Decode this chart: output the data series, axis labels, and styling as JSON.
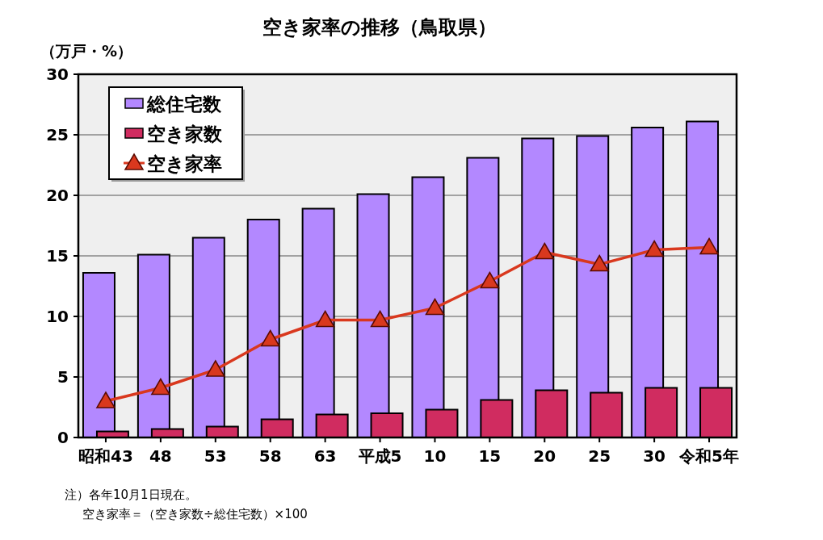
{
  "chart_data": {
    "type": "bar",
    "title": "空き家率の推移（鳥取県）",
    "ylabel": "（万戸・%）",
    "categories": [
      "昭和43",
      "48",
      "53",
      "58",
      "63",
      "平成5",
      "10",
      "15",
      "20",
      "25",
      "30",
      "令和5年"
    ],
    "series": [
      {
        "name": "総住宅数",
        "color": "#b388ff",
        "values": [
          13.6,
          15.1,
          16.5,
          18.0,
          18.9,
          20.1,
          21.5,
          23.1,
          24.7,
          24.9,
          25.6,
          26.1
        ]
      },
      {
        "name": "空き家数",
        "color": "#d02c60",
        "values": [
          0.5,
          0.7,
          0.9,
          1.5,
          1.9,
          2.0,
          2.3,
          3.1,
          3.9,
          3.7,
          4.1,
          4.1
        ]
      },
      {
        "name": "空き家率",
        "type": "line",
        "color": "#d9381e",
        "marker": "triangle",
        "values": [
          3.0,
          4.1,
          5.6,
          8.1,
          9.7,
          9.7,
          10.7,
          12.9,
          15.3,
          14.3,
          15.5,
          15.7
        ]
      }
    ],
    "ylim": [
      0,
      30
    ],
    "yticks": [
      0,
      5,
      10,
      15,
      20,
      25,
      30
    ],
    "grid": "y",
    "legend": "top left",
    "annotations": [
      "注）各年10月1日現在。",
      "空き家率＝（空き家数÷総住宅数）×100"
    ]
  }
}
